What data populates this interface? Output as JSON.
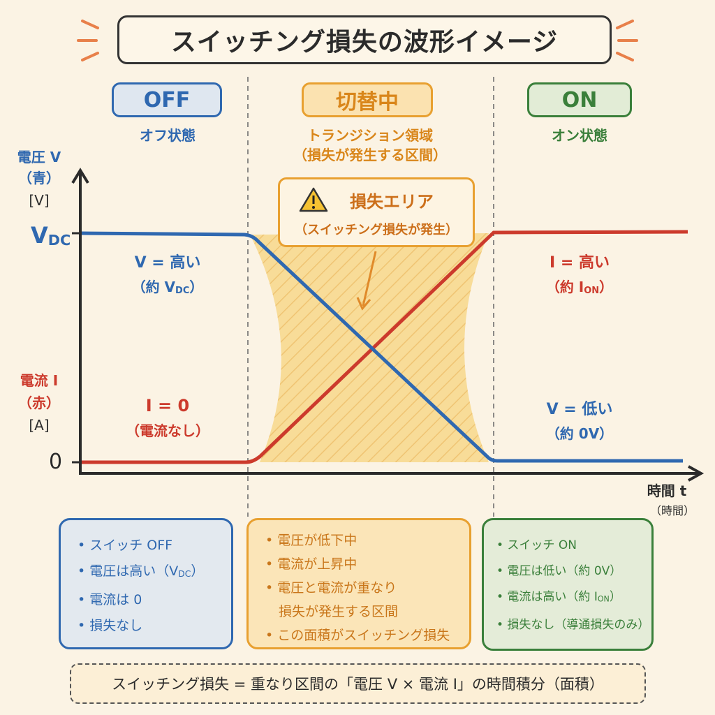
{
  "title": "スイッチング損失の波形イメージ",
  "phases": [
    {
      "label": "OFF",
      "sub": "オフ状態"
    },
    {
      "label": "切替中",
      "sub": "トランジション領域",
      "sub2": "（損失が発生する区間）"
    },
    {
      "label": "ON",
      "sub": "オン状態"
    }
  ],
  "axes": {
    "v_label": "電圧 V",
    "v_color": "（青）",
    "v_unit": "[V]",
    "i_label": "電流 I",
    "i_color": "（赤）",
    "i_unit": "[A]",
    "vdc_tick": "V",
    "vdc_sub": "DC",
    "zero_tick": "0",
    "x_label": "時間 t",
    "x_sub": "（時間）"
  },
  "annotations": {
    "off_v": "V = 高い",
    "off_v2": "（約 V",
    "off_v2_sub": "DC",
    "off_v2_end": "）",
    "off_i": "I = 0",
    "off_i2": "（電流なし）",
    "on_i": "I = 高い",
    "on_i2": "（約 I",
    "on_i2_sub": "ON",
    "on_i2_end": "）",
    "on_v": "V = 低い",
    "on_v2": "（約 0V）",
    "loss_title": "損失エリア",
    "loss_sub": "（スイッチング損失が発生）"
  },
  "boxes": {
    "off": [
      "• スイッチ OFF",
      "• 電圧は高い（V",
      "• 電流は 0",
      "• 損失なし"
    ],
    "off_sub": "DC",
    "off_end": "）",
    "trans": [
      "• 電圧が低下中",
      "• 電流が上昇中",
      "• 電圧と電流が重なり",
      "　損失が発生する区間",
      "• この面積がスイッチング損失"
    ],
    "on": [
      "• スイッチ ON",
      "• 電圧は低い（約 0V）",
      "• 電流は高い（約 I",
      "• 損失なし（導通損失のみ）"
    ],
    "on_sub": "ON",
    "on_end": "）"
  },
  "formula": "スイッチング損失 = 重なり区間の「電圧 V × 電流 I」の時間積分（面積）",
  "colors": {
    "voltage": "#2f68b0",
    "current": "#cc3a2c",
    "transition": "#e8a030",
    "on": "#3a7f3a",
    "bg": "#fbf3e4"
  }
}
